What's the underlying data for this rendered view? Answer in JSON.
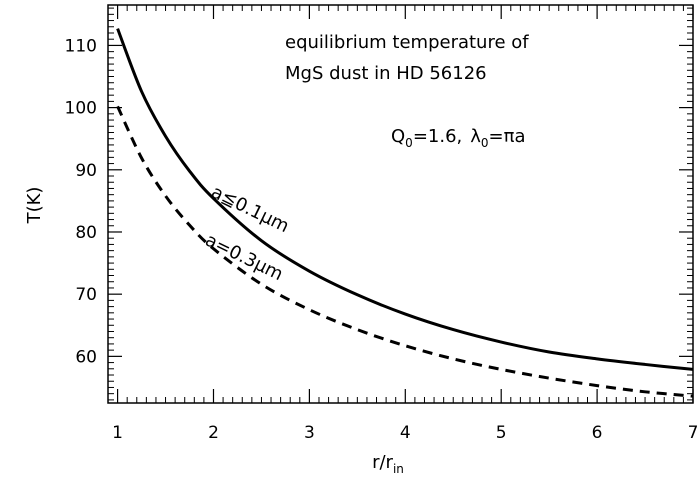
{
  "chart_data": {
    "type": "line",
    "title": "",
    "xlabel": "r/r",
    "xlabel_sub": "in",
    "ylabel": "T(K)",
    "xlim": [
      0.9,
      7.0
    ],
    "ylim": [
      52.5,
      116.5
    ],
    "x_ticks": [
      1,
      2,
      3,
      4,
      5,
      6,
      7
    ],
    "y_ticks": [
      60,
      70,
      80,
      90,
      100,
      110
    ],
    "grid": false,
    "annotations": {
      "line1": "equilibrium temperature of",
      "line2": "MgS dust in HD 56126",
      "params": {
        "Q": "Q",
        "Q_sub": "0",
        "Q_val": "=1.6,",
        "lambda": "λ",
        "lambda_sub": "0",
        "lambda_val": "=πa"
      }
    },
    "series": [
      {
        "name": "a≦0.1μm",
        "style": "solid",
        "x": [
          1.0,
          1.25,
          1.5,
          1.75,
          2.0,
          2.5,
          3.0,
          3.5,
          4.0,
          4.5,
          5.0,
          5.5,
          6.0,
          6.5,
          7.0
        ],
        "y": [
          112.7,
          102.6,
          95.4,
          89.8,
          85.4,
          78.6,
          73.7,
          69.9,
          66.8,
          64.3,
          62.3,
          60.7,
          59.6,
          58.7,
          57.9
        ]
      },
      {
        "name": "a=0.3μm",
        "style": "dashed",
        "x": [
          1.0,
          1.25,
          1.5,
          1.75,
          2.0,
          2.5,
          3.0,
          3.5,
          4.0,
          4.5,
          5.0,
          5.5,
          6.0,
          6.5,
          7.0
        ],
        "y": [
          100.2,
          91.9,
          85.8,
          81.1,
          77.3,
          71.6,
          67.5,
          64.3,
          61.7,
          59.6,
          57.9,
          56.5,
          55.3,
          54.3,
          53.6
        ]
      }
    ]
  }
}
